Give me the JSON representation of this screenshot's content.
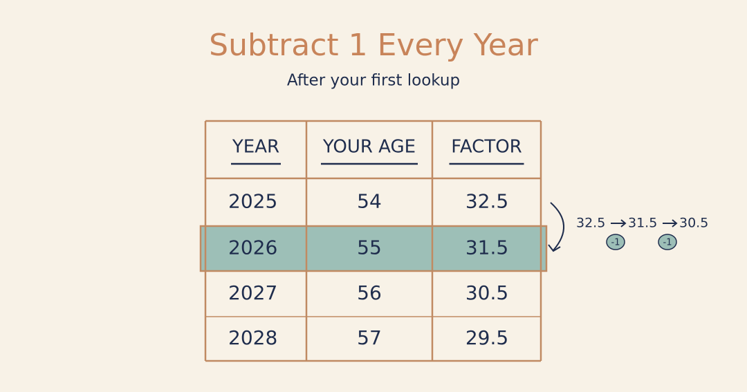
{
  "header": {
    "title": "Subtract 1 Every Year",
    "subtitle": "After your first lookup"
  },
  "table": {
    "columns": [
      "YEAR",
      "YOUR AGE",
      "FACTOR"
    ],
    "rows": [
      [
        "2025",
        "54",
        "32.5"
      ],
      [
        "2026",
        "55",
        "31.5"
      ],
      [
        "2027",
        "56",
        "30.5"
      ],
      [
        "2028",
        "57",
        "29.5"
      ]
    ],
    "highlight_row": 1
  },
  "annotation": {
    "sequence": [
      "32.5",
      "31.5",
      "30.5"
    ],
    "steps": [
      "-1",
      "-1"
    ]
  }
}
